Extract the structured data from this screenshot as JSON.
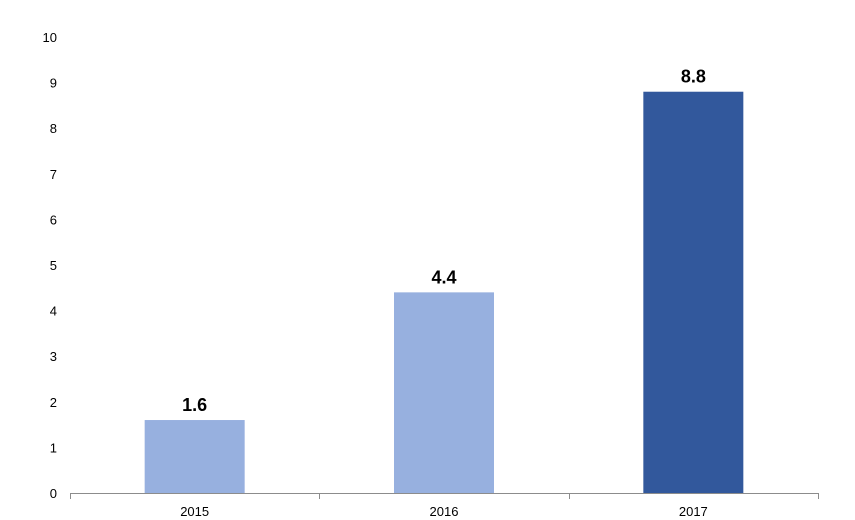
{
  "chart_data": {
    "type": "bar",
    "title": "",
    "xlabel": "",
    "ylabel": "",
    "categories": [
      "2015",
      "2016",
      "2017"
    ],
    "values": [
      1.6,
      4.4,
      8.8
    ],
    "data_labels": [
      "1.6",
      "4.4",
      "8.8"
    ],
    "ylim": [
      0,
      10
    ],
    "yticks": [
      "0",
      "1",
      "2",
      "3",
      "4",
      "5",
      "6",
      "7",
      "8",
      "9",
      "10"
    ],
    "grid": false,
    "legend": "none",
    "bar_colors": [
      "#97b0df",
      "#97b0df",
      "#32589c"
    ],
    "axis_color": "#8c8c8c"
  }
}
